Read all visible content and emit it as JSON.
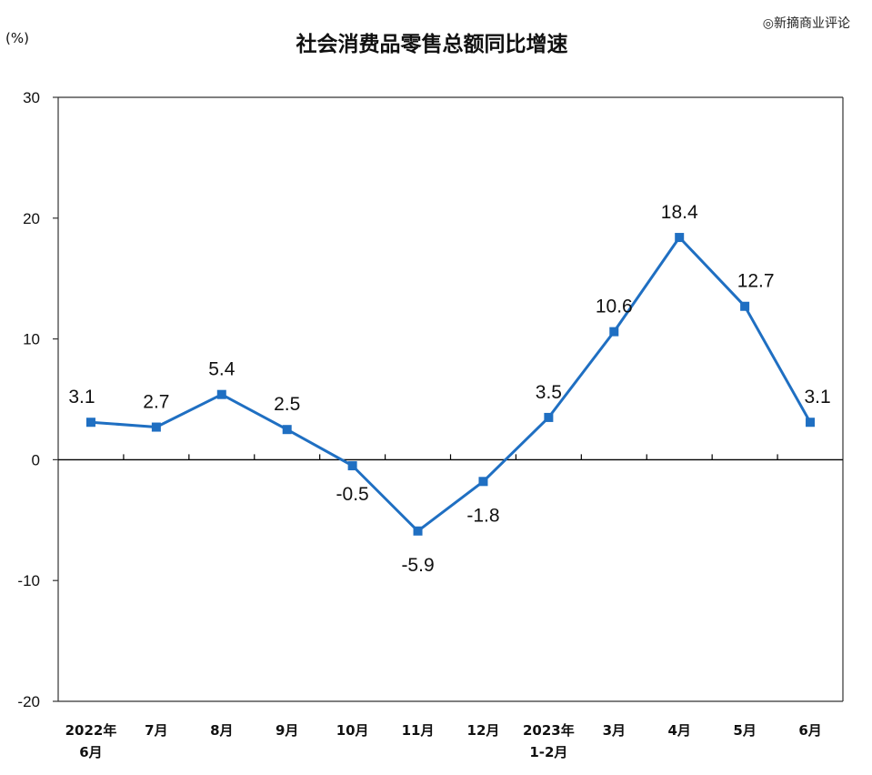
{
  "chart_data": {
    "type": "line",
    "title": "社会消费品零售总额同比增速",
    "unit_label": "(%)",
    "categories": [
      [
        "2022年",
        "6月"
      ],
      [
        "7月"
      ],
      [
        "8月"
      ],
      [
        "9月"
      ],
      [
        "10月"
      ],
      [
        "11月"
      ],
      [
        "12月"
      ],
      [
        "2023年",
        "1-2月"
      ],
      [
        "3月"
      ],
      [
        "4月"
      ],
      [
        "5月"
      ],
      [
        "6月"
      ]
    ],
    "series": [
      {
        "values": [
          3.1,
          2.7,
          5.4,
          2.5,
          -0.5,
          -5.9,
          -1.8,
          3.5,
          10.6,
          18.4,
          12.7,
          3.1
        ],
        "labels": [
          "3.1",
          "2.7",
          "5.4",
          "2.5",
          "-0.5",
          "-5.9",
          "-1.8",
          "3.5",
          "10.6",
          "18.4",
          "12.7",
          "3.1"
        ],
        "color": "#1f6fc2"
      }
    ],
    "ylim": [
      -20,
      30
    ],
    "yticks": [
      -20,
      -10,
      0,
      10,
      20,
      30
    ],
    "grid": false,
    "legend": "none"
  },
  "watermark": "◎新摘商业评论"
}
